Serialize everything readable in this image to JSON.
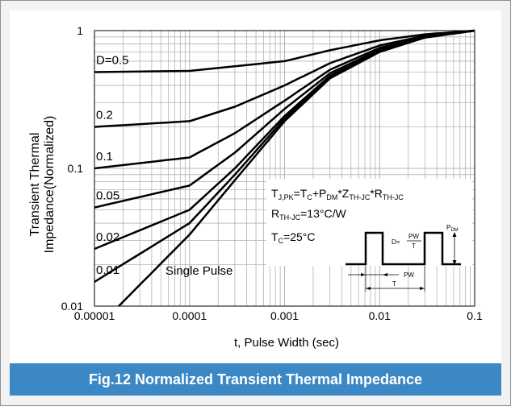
{
  "figure": {
    "caption": "Fig.12 Normalized Transient Thermal Impedance"
  },
  "chart_data": {
    "type": "line",
    "xlabel": "t, Pulse Width (sec)",
    "ylabel_line1": "Transient Thermal",
    "ylabel_line2": "Impedance(Normalized)",
    "xscale": "log",
    "yscale": "log",
    "xlim": [
      1e-05,
      0.1
    ],
    "ylim": [
      0.01,
      1
    ],
    "grid": true,
    "xticks": [
      {
        "value": 1e-05,
        "label": "0.00001"
      },
      {
        "value": 0.0001,
        "label": "0.0001"
      },
      {
        "value": 0.001,
        "label": "0.001"
      },
      {
        "value": 0.01,
        "label": "0.01"
      },
      {
        "value": 0.1,
        "label": "0.1"
      }
    ],
    "yticks": [
      {
        "value": 0.01,
        "label": "0.01"
      },
      {
        "value": 0.1,
        "label": "0.1"
      },
      {
        "value": 1,
        "label": "1"
      }
    ],
    "series": [
      {
        "name": "D=0.5",
        "x": [
          1e-05,
          0.0001,
          0.001,
          0.003,
          0.01,
          0.03,
          0.1
        ],
        "y": [
          0.5,
          0.51,
          0.6,
          0.72,
          0.85,
          0.94,
          1.0
        ]
      },
      {
        "name": "0.2",
        "x": [
          1e-05,
          0.0001,
          0.0003,
          0.001,
          0.003,
          0.01,
          0.03,
          0.1
        ],
        "y": [
          0.2,
          0.22,
          0.28,
          0.4,
          0.58,
          0.78,
          0.92,
          1.0
        ]
      },
      {
        "name": "0.1",
        "x": [
          1e-05,
          0.0001,
          0.0003,
          0.001,
          0.003,
          0.01,
          0.03,
          0.1
        ],
        "y": [
          0.1,
          0.12,
          0.18,
          0.31,
          0.52,
          0.75,
          0.91,
          1.0
        ]
      },
      {
        "name": "0.05",
        "x": [
          1e-05,
          0.0001,
          0.0003,
          0.001,
          0.003,
          0.01,
          0.03,
          0.1
        ],
        "y": [
          0.052,
          0.075,
          0.13,
          0.27,
          0.49,
          0.73,
          0.9,
          1.0
        ]
      },
      {
        "name": "0.02",
        "x": [
          1e-05,
          0.0001,
          0.0003,
          0.001,
          0.003,
          0.01,
          0.03,
          0.1
        ],
        "y": [
          0.026,
          0.05,
          0.1,
          0.24,
          0.47,
          0.72,
          0.9,
          1.0
        ]
      },
      {
        "name": "0.01",
        "x": [
          1e-05,
          0.0001,
          0.0003,
          0.001,
          0.003,
          0.01,
          0.03,
          0.1
        ],
        "y": [
          0.015,
          0.04,
          0.09,
          0.23,
          0.46,
          0.71,
          0.89,
          1.0
        ]
      },
      {
        "name": "Single Pulse",
        "x": [
          1.8e-05,
          0.0001,
          0.0003,
          0.001,
          0.003,
          0.01,
          0.03,
          0.1
        ],
        "y": [
          0.01,
          0.033,
          0.082,
          0.22,
          0.45,
          0.7,
          0.89,
          1.0
        ]
      }
    ],
    "annotation": {
      "line1": [
        "T",
        "J,PK",
        "=T",
        "C",
        "+P",
        "DM",
        "*Z",
        "TH-JC",
        "*R",
        "TH-JC"
      ],
      "line2": [
        "R",
        "TH-JC",
        "=13°C/W"
      ],
      "line3": [
        "T",
        "C",
        "=25°C"
      ]
    },
    "inset": {
      "pdm": "P",
      "pdm_sub": "DM",
      "d": "D=",
      "num": "PW",
      "den": "T",
      "pw": "PW",
      "t": "T"
    },
    "colors": {
      "caption_bg": "#3b88c5",
      "grid": "#b3b3b3",
      "line": "#000000"
    }
  }
}
